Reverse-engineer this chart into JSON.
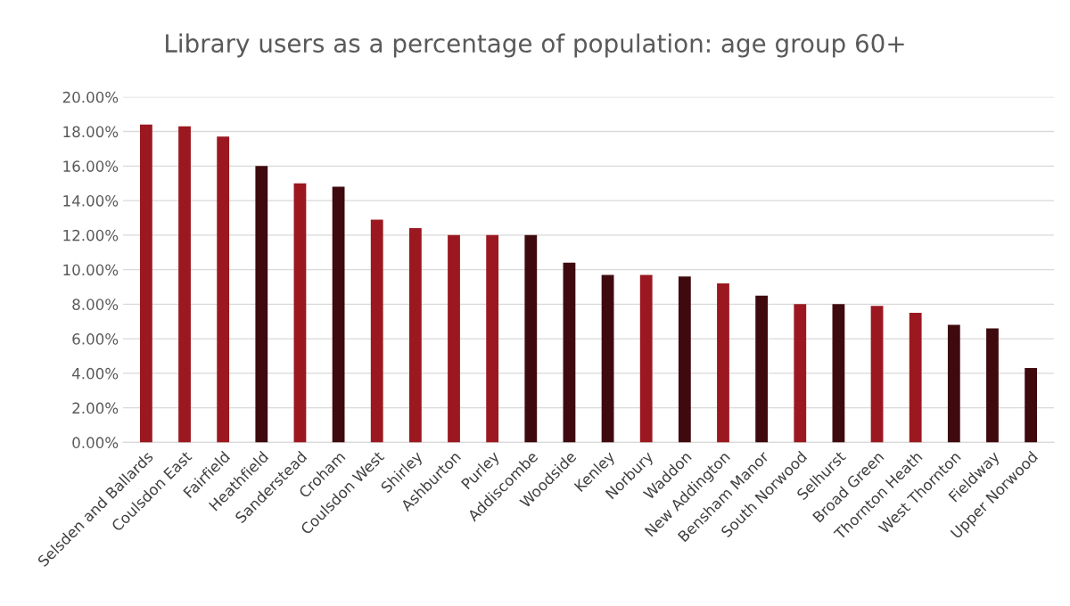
{
  "chart_data": {
    "type": "bar",
    "title": "Library users as a percentage of population: age group 60+",
    "categories": [
      "Selsden and Ballards",
      "Coulsdon East",
      "Fairfield",
      "Heathfield",
      "Sanderstead",
      "Croham",
      "Coulsdon West",
      "Shirley",
      "Ashburton",
      "Purley",
      "Addiscombe",
      "Woodside",
      "Kenley",
      "Norbury",
      "Waddon",
      "New Addington",
      "Bensham Manor",
      "South Norwood",
      "Selhurst",
      "Broad Green",
      "Thornton Heath",
      "West Thornton",
      "Fieldway",
      "Upper Norwood"
    ],
    "values": [
      18.4,
      18.3,
      17.7,
      16.0,
      15.0,
      14.8,
      12.9,
      12.4,
      12.0,
      12.0,
      12.0,
      10.4,
      9.7,
      9.7,
      9.6,
      9.2,
      8.5,
      8.0,
      8.0,
      7.9,
      7.5,
      6.8,
      6.6,
      4.3
    ],
    "colors": [
      "#9b1820",
      "#9b1820",
      "#9b1820",
      "#3f0a0e",
      "#9b1820",
      "#3f0a0e",
      "#9b1820",
      "#9b1820",
      "#9b1820",
      "#9b1820",
      "#3f0a0e",
      "#3f0a0e",
      "#3f0a0e",
      "#9b1820",
      "#3f0a0e",
      "#9b1820",
      "#3f0a0e",
      "#9b1820",
      "#3f0a0e",
      "#9b1820",
      "#9b1820",
      "#3f0a0e",
      "#3f0a0e",
      "#3f0a0e"
    ],
    "ylim": [
      0,
      20
    ],
    "yticks": [
      {
        "value": 0,
        "label": "0.00%"
      },
      {
        "value": 2,
        "label": "2.00%"
      },
      {
        "value": 4,
        "label": "4.00%"
      },
      {
        "value": 6,
        "label": "6.00%"
      },
      {
        "value": 8,
        "label": "8.00%"
      },
      {
        "value": 10,
        "label": "10.00%"
      },
      {
        "value": 12,
        "label": "12.00%"
      },
      {
        "value": 14,
        "label": "14.00%"
      },
      {
        "value": 16,
        "label": "16.00%"
      },
      {
        "value": 18,
        "label": "18.00%"
      },
      {
        "value": 20,
        "label": "20.00%"
      }
    ],
    "grid": "y"
  }
}
